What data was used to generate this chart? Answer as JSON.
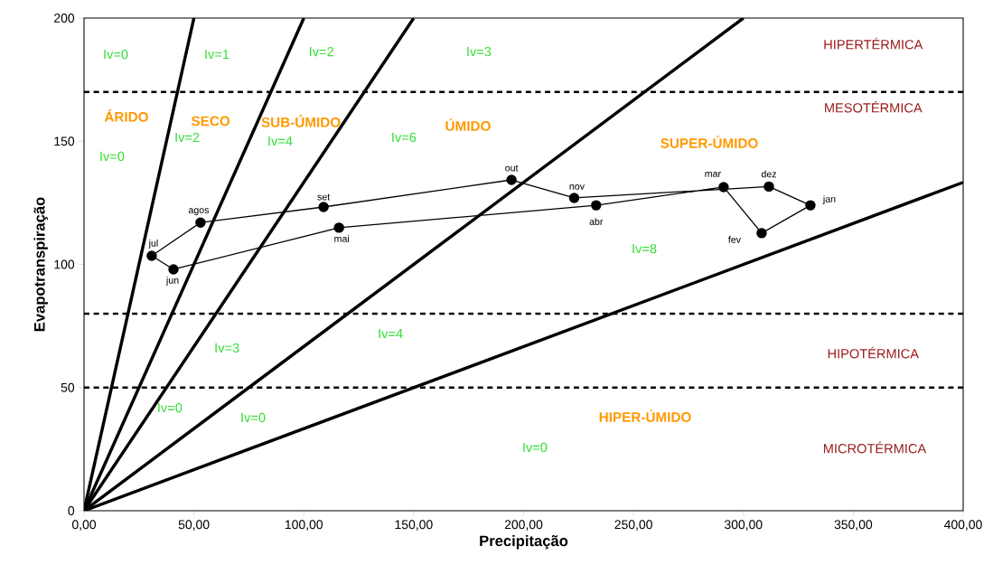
{
  "chart_data": {
    "type": "line",
    "xlabel": "Precipitação",
    "ylabel": "Evapotranspiração",
    "xlim": [
      0,
      400
    ],
    "ylim": [
      0,
      200
    ],
    "xticks": [
      {
        "value": 0,
        "label": "0,00"
      },
      {
        "value": 50,
        "label": "50,00"
      },
      {
        "value": 100,
        "label": "100,00"
      },
      {
        "value": 150,
        "label": "150,00"
      },
      {
        "value": 200,
        "label": "200,00"
      },
      {
        "value": 250,
        "label": "250,00"
      },
      {
        "value": 300,
        "label": "300,00"
      },
      {
        "value": 350,
        "label": "350,00"
      },
      {
        "value": 400,
        "label": "400,00"
      }
    ],
    "yticks": [
      0,
      50,
      100,
      150,
      200
    ],
    "grid": false,
    "series": [
      {
        "color": "#000000",
        "marker": "none",
        "x": [
          0,
          50
        ],
        "values": [
          0,
          200
        ]
      },
      {
        "color": "#000000",
        "marker": "none",
        "x": [
          0,
          100
        ],
        "values": [
          0,
          200
        ]
      },
      {
        "color": "#000000",
        "marker": "none",
        "x": [
          0,
          150
        ],
        "values": [
          0,
          200
        ]
      },
      {
        "color": "#000000",
        "marker": "none",
        "x": [
          0,
          300
        ],
        "values": [
          0,
          200
        ]
      },
      {
        "color": "#000000",
        "marker": "none",
        "x": [
          0,
          400
        ],
        "values": [
          0,
          133.3
        ]
      },
      {
        "color": "#000000",
        "marker": "circle",
        "x": [
          330.5,
          308.3,
          291,
          233,
          116,
          40.7,
          30.8,
          53,
          109,
          194.5,
          223,
          311.6
        ],
        "values": [
          124,
          112.7,
          131.4,
          124,
          114.9,
          98,
          103.5,
          117,
          123.3,
          134.3,
          127,
          131.6
        ]
      },
      {
        "color": "#000000",
        "marker": "none",
        "x": [
          311.6,
          330.5
        ],
        "values": [
          131.6,
          124
        ]
      }
    ],
    "ref_lines": [
      {
        "axis": "y",
        "value": 170,
        "color": "#000000",
        "line_style": "dashed"
      },
      {
        "axis": "y",
        "value": 80,
        "color": "#000000",
        "line_style": "dashed"
      },
      {
        "axis": "y",
        "value": 50,
        "color": "#000000",
        "line_style": "dashed"
      }
    ],
    "annotations": [
      "HIPERTÉRMICA",
      "MESOTÉRMICA",
      "HIPOTÉRMICA",
      "MICROTÉRMICA",
      "ÁRIDO",
      "SECO",
      "SUB-ÚMIDO",
      "ÚMIDO",
      "SUPER-ÚMIDO",
      "HIPER-ÚMIDO",
      "Iv=0",
      "Iv=1",
      "Iv=2",
      "Iv=3",
      "Iv=0",
      "Iv=2",
      "Iv=4",
      "Iv=6",
      "Iv=8",
      "Iv=3",
      "Iv=4",
      "Iv=0",
      "Iv=0",
      "Iv=0",
      {
        "text": "jan",
        "x": 330.5,
        "y": 124
      },
      {
        "text": "fev",
        "x": 308.3,
        "y": 112.7
      },
      {
        "text": "mar",
        "x": 291,
        "y": 131.4
      },
      {
        "text": "abr",
        "x": 233,
        "y": 124
      },
      {
        "text": "mai",
        "x": 116,
        "y": 114.9
      },
      {
        "text": "jun",
        "x": 40.7,
        "y": 98
      },
      {
        "text": "jul",
        "x": 30.8,
        "y": 103.5
      },
      {
        "text": "agos",
        "x": 53,
        "y": 117
      },
      {
        "text": "set",
        "x": 109,
        "y": 123.3
      },
      {
        "text": "out",
        "x": 194.5,
        "y": 134.3
      },
      {
        "text": "nov",
        "x": 223,
        "y": 127
      },
      {
        "text": "dez",
        "x": 311.6,
        "y": 131.6
      }
    ]
  }
}
